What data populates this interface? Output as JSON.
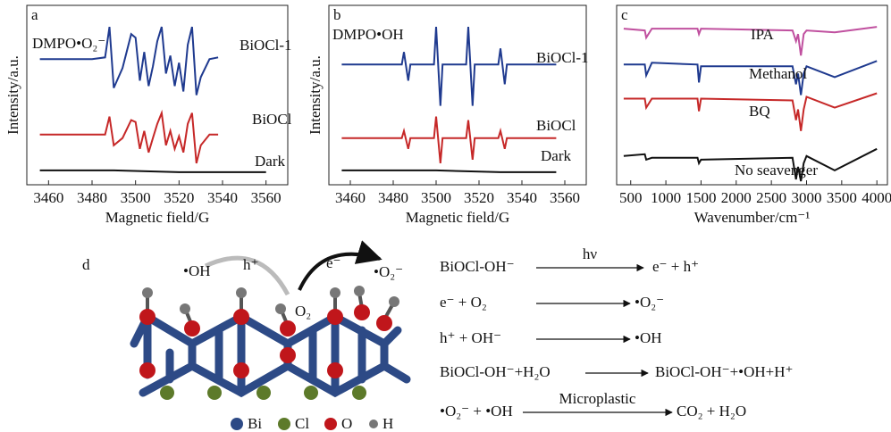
{
  "chart_data": [
    {
      "type": "line",
      "panel_label": "a",
      "annotation": "DMPO•O₂⁻",
      "xlabel": "Magnetic field/G",
      "ylabel": "Intensity/a.u.",
      "xlim": [
        3450,
        3570
      ],
      "xticks": [
        3460,
        3480,
        3500,
        3520,
        3540,
        3560
      ],
      "ylim": [
        0,
        100
      ],
      "series": [
        {
          "name": "BiOCl-1",
          "color": "#1f3a8f",
          "x": [
            3456,
            3480,
            3486,
            3488,
            3490,
            3494,
            3498,
            3500,
            3502,
            3504,
            3506,
            3508,
            3510,
            3512,
            3514,
            3516,
            3518,
            3520,
            3522,
            3524,
            3526,
            3528,
            3530,
            3534,
            3538
          ],
          "values": [
            70,
            70,
            71,
            88,
            54,
            65,
            84,
            82,
            58,
            74,
            55,
            66,
            80,
            88,
            62,
            72,
            55,
            68,
            52,
            78,
            88,
            50,
            60,
            70,
            71
          ]
        },
        {
          "name": "BiOCl",
          "color": "#c62828",
          "x": [
            3456,
            3486,
            3488,
            3490,
            3494,
            3498,
            3500,
            3502,
            3504,
            3506,
            3508,
            3510,
            3512,
            3514,
            3516,
            3518,
            3520,
            3522,
            3524,
            3526,
            3528,
            3530,
            3534,
            3538
          ],
          "values": [
            28,
            28,
            38,
            22,
            26,
            36,
            35,
            20,
            30,
            18,
            26,
            34,
            40,
            22,
            30,
            20,
            27,
            18,
            34,
            40,
            12,
            22,
            28,
            28
          ]
        },
        {
          "name": "Dark",
          "color": "#111111",
          "x": [
            3456,
            3490,
            3520,
            3560
          ],
          "values": [
            8,
            8,
            7,
            7
          ]
        }
      ]
    },
    {
      "type": "line",
      "panel_label": "b",
      "annotation": "DMPO•OH",
      "xlabel": "Magnetic field/G",
      "ylabel": "Intensity/a.u.",
      "xlim": [
        3450,
        3570
      ],
      "xticks": [
        3460,
        3480,
        3500,
        3520,
        3540,
        3560
      ],
      "ylim": [
        0,
        100
      ],
      "series": [
        {
          "name": "BiOCl-1",
          "color": "#1f3a8f",
          "x": [
            3456,
            3484,
            3485,
            3487,
            3488,
            3499,
            3500,
            3502,
            3503,
            3514,
            3515,
            3517,
            3518,
            3529,
            3530,
            3532,
            3533,
            3556
          ],
          "values": [
            67,
            67,
            74,
            58,
            67,
            67,
            88,
            44,
            67,
            67,
            88,
            44,
            67,
            67,
            76,
            56,
            67,
            67
          ]
        },
        {
          "name": "BiOCl",
          "color": "#c62828",
          "x": [
            3456,
            3484,
            3485,
            3487,
            3488,
            3499,
            3500,
            3502,
            3503,
            3514,
            3515,
            3517,
            3518,
            3529,
            3530,
            3532,
            3533,
            3556
          ],
          "values": [
            26,
            26,
            30,
            20,
            26,
            26,
            38,
            12,
            26,
            26,
            36,
            14,
            26,
            26,
            30,
            20,
            26,
            26
          ]
        },
        {
          "name": "Dark",
          "color": "#111111",
          "x": [
            3456,
            3500,
            3530,
            3556
          ],
          "values": [
            8,
            8,
            7,
            7
          ]
        }
      ]
    },
    {
      "type": "line",
      "panel_label": "c",
      "xlabel": "Wavenumber/cm⁻¹",
      "xlim": [
        300,
        4150
      ],
      "xticks": [
        500,
        1000,
        1500,
        2000,
        2500,
        3000,
        3500,
        4000
      ],
      "ylim": [
        0,
        100
      ],
      "series": [
        {
          "name": "IPA",
          "color": "#c0509f",
          "x": [
            400,
            700,
            720,
            800,
            1450,
            1470,
            1500,
            2800,
            2850,
            2880,
            2920,
            2960,
            3000,
            3400,
            4000
          ],
          "values": [
            87,
            86,
            82,
            87,
            87,
            84,
            87,
            86,
            80,
            84,
            72,
            84,
            86,
            85,
            88
          ]
        },
        {
          "name": "Methanol",
          "color": "#1f3a8f",
          "x": [
            400,
            700,
            720,
            800,
            1450,
            1470,
            1500,
            2800,
            2850,
            2880,
            2920,
            2960,
            3000,
            3400,
            4000
          ],
          "values": [
            67,
            67,
            61,
            68,
            67,
            57,
            66,
            66,
            56,
            62,
            50,
            62,
            66,
            60,
            69
          ]
        },
        {
          "name": "BQ",
          "color": "#c62828",
          "x": [
            400,
            700,
            720,
            800,
            1450,
            1470,
            1500,
            2800,
            2850,
            2880,
            2920,
            2960,
            3000,
            3400,
            4000
          ],
          "values": [
            48,
            48,
            43,
            48,
            48,
            41,
            48,
            47,
            36,
            42,
            30,
            42,
            49,
            43,
            51
          ]
        },
        {
          "name": "No seavenger",
          "color": "#111111",
          "x": [
            400,
            700,
            720,
            800,
            1450,
            1470,
            1500,
            2800,
            2850,
            2880,
            2920,
            2960,
            3000,
            3400,
            4000
          ],
          "values": [
            16,
            17,
            14,
            15,
            15,
            12,
            14,
            15,
            3,
            10,
            2,
            12,
            16,
            8,
            20
          ]
        }
      ]
    }
  ],
  "scheme": {
    "label": "d",
    "oh": "•OH",
    "h": "h⁺",
    "e": "e⁻",
    "o2m": "•O₂⁻",
    "o2": "O₂",
    "legend": [
      "Bi",
      "Cl",
      "O",
      "H"
    ],
    "equations": [
      {
        "left": "BiOCl-OH⁻",
        "over": "hν",
        "right": "e⁻  +  h⁺"
      },
      {
        "left": "e⁻   +   O₂",
        "right": "•O₂⁻"
      },
      {
        "left": "h⁺   +   OH⁻",
        "right": "•OH"
      },
      {
        "left": "BiOCl-OH⁻+H₂O",
        "right": "BiOCl-OH⁻+•OH+H⁺"
      },
      {
        "left": "•O₂⁻   +   •OH",
        "over": "Microplastic",
        "right": "CO₂  + H₂O"
      }
    ]
  }
}
